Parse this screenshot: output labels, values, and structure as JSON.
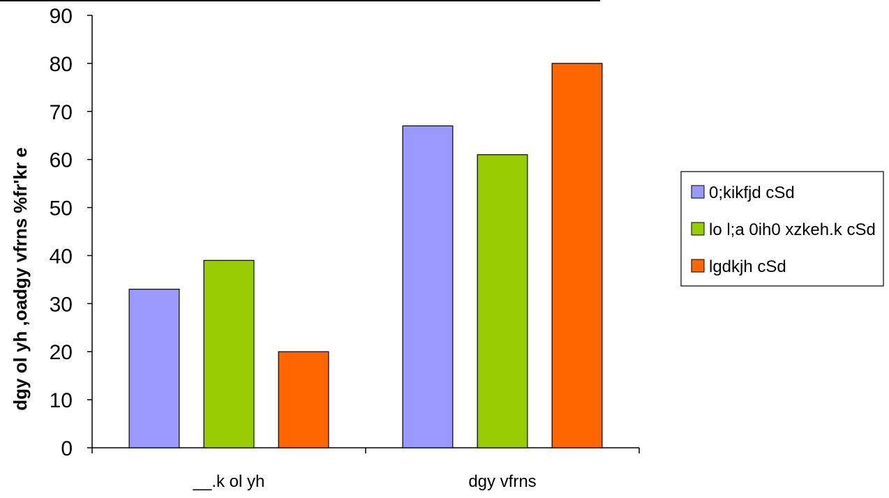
{
  "chart_data": {
    "type": "bar",
    "title": "",
    "xlabel": "",
    "ylabel": "dgy ol yh ,oadgy vfrns %fr'kr e",
    "ylim": [
      0,
      90
    ],
    "yticks": [
      0,
      10,
      20,
      30,
      40,
      50,
      60,
      70,
      80,
      90
    ],
    "categories": [
      "__.k ol yh",
      "dgy vfrns"
    ],
    "series": [
      {
        "name": "0;kikfjd cSd",
        "color": "#9999ff",
        "values": [
          33,
          67
        ]
      },
      {
        "name": "lo l;a 0ih0 xzkeh.k cSd",
        "color": "#99cc00",
        "values": [
          39,
          61
        ]
      },
      {
        "name": "lgdkjh cSd",
        "color": "#ff6600",
        "values": [
          20,
          80
        ]
      }
    ],
    "grid": false,
    "legend_position": "right"
  }
}
